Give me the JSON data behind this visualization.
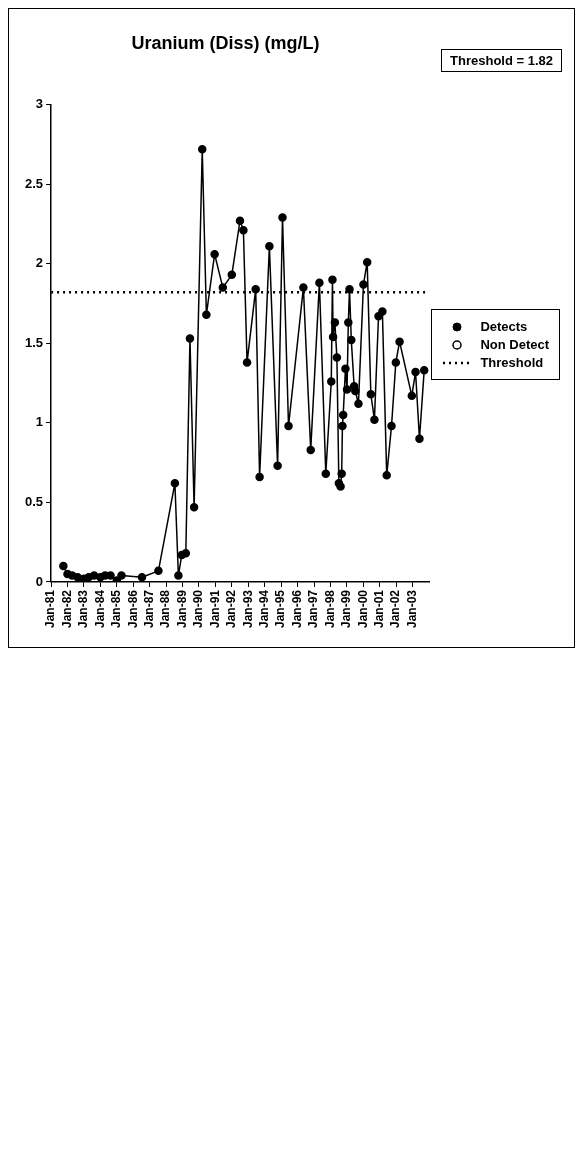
{
  "chart_data": {
    "type": "line",
    "title": "Uranium (Diss) (mg/L)",
    "series": [
      {
        "name": "Detects",
        "color": "#000000",
        "x": [
          "1981-10-01",
          "1982-01-01",
          "1982-04-15",
          "1982-08-15",
          "1983-01-01",
          "1983-04-15",
          "1983-08-15",
          "1984-01-01",
          "1984-04-15",
          "1984-08-15",
          "1985-01-01",
          "1985-04-15",
          "1986-07-15",
          "1987-07-15",
          "1988-07-15",
          "1988-10-01",
          "1988-12-15",
          "1989-03-15",
          "1989-06-15",
          "1989-09-15",
          "1990-03-15",
          "1990-06-15",
          "1990-12-15",
          "1991-06-15",
          "1992-01-01",
          "1992-07-01",
          "1992-09-15",
          "1992-12-05",
          "1993-06-15",
          "1993-09-10",
          "1994-04-15",
          "1994-10-15",
          "1995-02-01",
          "1995-06-15",
          "1996-05-10",
          "1996-10-20",
          "1997-05-01",
          "1997-09-20",
          "1998-01-20",
          "1998-02-15",
          "1998-03-01",
          "1998-04-10",
          "1998-05-25",
          "1998-07-08",
          "1998-08-15",
          "1998-09-08",
          "1998-09-25",
          "1998-10-12",
          "1998-12-01",
          "1999-01-05",
          "1999-02-03",
          "1999-03-01",
          "1999-04-10",
          "1999-06-12",
          "1999-07-08",
          "1999-09-16",
          "2000-01-05",
          "2000-03-28",
          "2000-06-17",
          "2000-09-05",
          "2000-12-05",
          "2001-03-01",
          "2001-06-05",
          "2001-09-20",
          "2001-12-25",
          "2002-03-18",
          "2002-12-15",
          "2003-03-08",
          "2003-06-03",
          "2003-09-16"
        ],
        "values": [
          0.1,
          0.05,
          0.04,
          0.03,
          0.02,
          0.03,
          0.04,
          0.03,
          0.04,
          0.04,
          0.01,
          0.04,
          0.03,
          0.07,
          0.62,
          0.04,
          0.17,
          0.18,
          1.53,
          0.47,
          2.72,
          1.68,
          2.06,
          1.85,
          1.93,
          2.27,
          2.21,
          1.38,
          1.84,
          0.66,
          2.11,
          0.73,
          2.29,
          0.98,
          1.85,
          0.83,
          1.88,
          0.68,
          1.26,
          1.9,
          1.54,
          1.63,
          1.41,
          0.62,
          0.6,
          0.68,
          0.98,
          1.05,
          1.34,
          1.21,
          1.63,
          1.84,
          1.52,
          1.23,
          1.2,
          1.12,
          1.87,
          2.01,
          1.18,
          1.02,
          1.67,
          1.7,
          0.67,
          0.98,
          1.38,
          1.51,
          1.17,
          1.32,
          0.9,
          1.33
        ]
      },
      {
        "name": "Non Detect",
        "color": "#000000",
        "type": "scatter"
      }
    ],
    "ref_lines": [
      {
        "axis": "y",
        "value": 1.82,
        "label": "Threshold",
        "color": "#000000",
        "line_style": "dotted"
      }
    ],
    "annotations": [
      "Threshold = 1.82"
    ],
    "xlim": [
      "1981-01-01",
      "2004-01-01"
    ],
    "xticks": [
      {
        "value": "1981-01-01",
        "label": "Jan-81"
      },
      {
        "value": "1982-01-01",
        "label": "Jan-82"
      },
      {
        "value": "1983-01-01",
        "label": "Jan-83"
      },
      {
        "value": "1984-01-01",
        "label": "Jan-84"
      },
      {
        "value": "1985-01-01",
        "label": "Jan-85"
      },
      {
        "value": "1986-01-01",
        "label": "Jan-86"
      },
      {
        "value": "1987-01-01",
        "label": "Jan-87"
      },
      {
        "value": "1988-01-01",
        "label": "Jan-88"
      },
      {
        "value": "1989-01-01",
        "label": "Jan-89"
      },
      {
        "value": "1990-01-01",
        "label": "Jan-90"
      },
      {
        "value": "1991-01-01",
        "label": "Jan-91"
      },
      {
        "value": "1992-01-01",
        "label": "Jan-92"
      },
      {
        "value": "1993-01-01",
        "label": "Jan-93"
      },
      {
        "value": "1994-01-01",
        "label": "Jan-94"
      },
      {
        "value": "1995-01-01",
        "label": "Jan-95"
      },
      {
        "value": "1996-01-01",
        "label": "Jan-96"
      },
      {
        "value": "1997-01-01",
        "label": "Jan-97"
      },
      {
        "value": "1998-01-01",
        "label": "Jan-98"
      },
      {
        "value": "1999-01-01",
        "label": "Jan-99"
      },
      {
        "value": "2000-01-01",
        "label": "Jan-00"
      },
      {
        "value": "2001-01-01",
        "label": "Jan-01"
      },
      {
        "value": "2002-01-01",
        "label": "Jan-02"
      },
      {
        "value": "2003-01-01",
        "label": "Jan-03"
      }
    ],
    "ylim": [
      0,
      3
    ],
    "yticks": [
      0,
      0.5,
      1,
      1.5,
      2,
      2.5,
      3
    ],
    "grid": false,
    "legend": "right",
    "marker": "circle",
    "line_style": "solid"
  }
}
